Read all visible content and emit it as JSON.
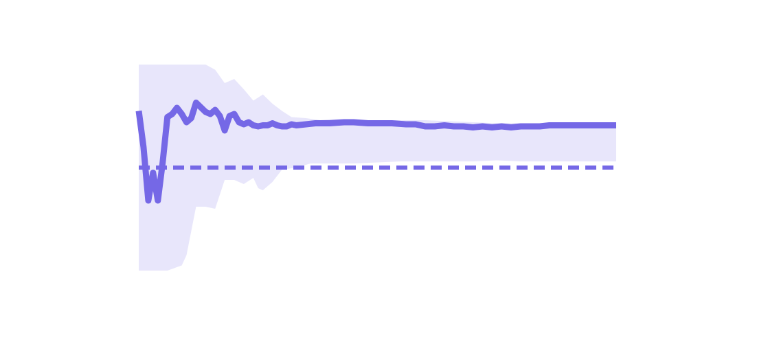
{
  "chart_data": {
    "type": "line",
    "title": "",
    "xlabel": "",
    "ylabel": "",
    "grid": false,
    "legend": false,
    "xlim": [
      0,
      100
    ],
    "ylim": [
      -1,
      1
    ],
    "series": [
      {
        "role": "estimate",
        "x": [
          0,
          1,
          2,
          3,
          4,
          5,
          6,
          7,
          8,
          9,
          10,
          11,
          12,
          14,
          15,
          16,
          17,
          18,
          19,
          20,
          21,
          22,
          23,
          24,
          25,
          26,
          27,
          28,
          29,
          30,
          31,
          32,
          33,
          35,
          37,
          40,
          43,
          45,
          48,
          50,
          53,
          56,
          58,
          60,
          62,
          64,
          66,
          68,
          70,
          72,
          74,
          76,
          78,
          80,
          82,
          84,
          86,
          88,
          90,
          92,
          94,
          96,
          98,
          100
        ],
        "y": [
          0.55,
          0.2,
          -0.32,
          -0.05,
          -0.32,
          0.05,
          0.49,
          0.52,
          0.58,
          0.52,
          0.44,
          0.48,
          0.63,
          0.54,
          0.52,
          0.56,
          0.5,
          0.36,
          0.5,
          0.52,
          0.44,
          0.42,
          0.44,
          0.41,
          0.4,
          0.41,
          0.41,
          0.43,
          0.41,
          0.4,
          0.4,
          0.42,
          0.41,
          0.42,
          0.43,
          0.43,
          0.44,
          0.44,
          0.43,
          0.43,
          0.43,
          0.42,
          0.42,
          0.4,
          0.4,
          0.41,
          0.4,
          0.4,
          0.39,
          0.4,
          0.39,
          0.4,
          0.39,
          0.4,
          0.4,
          0.4,
          0.41,
          0.41,
          0.41,
          0.41,
          0.41,
          0.41,
          0.41,
          0.41
        ]
      },
      {
        "role": "upper-bound",
        "x": [
          0,
          3,
          6,
          8,
          10,
          14,
          16,
          18,
          20,
          22,
          24,
          26,
          28,
          30,
          32,
          35,
          38,
          40,
          43,
          46,
          50,
          55,
          60,
          65,
          70,
          75,
          80,
          85,
          90,
          95,
          100
        ],
        "y": [
          1.0,
          1.0,
          1.0,
          1.0,
          1.0,
          1.0,
          0.95,
          0.82,
          0.86,
          0.76,
          0.65,
          0.71,
          0.62,
          0.55,
          0.49,
          0.48,
          0.46,
          0.47,
          0.47,
          0.46,
          0.46,
          0.46,
          0.46,
          0.45,
          0.44,
          0.43,
          0.43,
          0.42,
          0.43,
          0.42,
          0.41
        ]
      },
      {
        "role": "lower-bound",
        "x": [
          0,
          3,
          6,
          9,
          10,
          12,
          14,
          16,
          18,
          20,
          22,
          24,
          25,
          26,
          28,
          30,
          33,
          36,
          40,
          45,
          50,
          55,
          60,
          65,
          70,
          75,
          80,
          85,
          90,
          95,
          100
        ],
        "y": [
          -1.0,
          -1.0,
          -1.0,
          -0.95,
          -0.85,
          -0.38,
          -0.38,
          -0.4,
          -0.12,
          -0.12,
          -0.16,
          -0.1,
          -0.2,
          -0.22,
          -0.14,
          -0.02,
          0.0,
          0.04,
          0.04,
          0.04,
          0.05,
          0.06,
          0.06,
          0.06,
          0.06,
          0.07,
          0.06,
          0.06,
          0.06,
          0.06,
          0.06
        ]
      }
    ],
    "reference_line": {
      "y": 0.0,
      "style": "dashed"
    },
    "colors": {
      "line": "#7568e6",
      "band": "#e8e6fb",
      "reference": "#7568e6"
    }
  }
}
